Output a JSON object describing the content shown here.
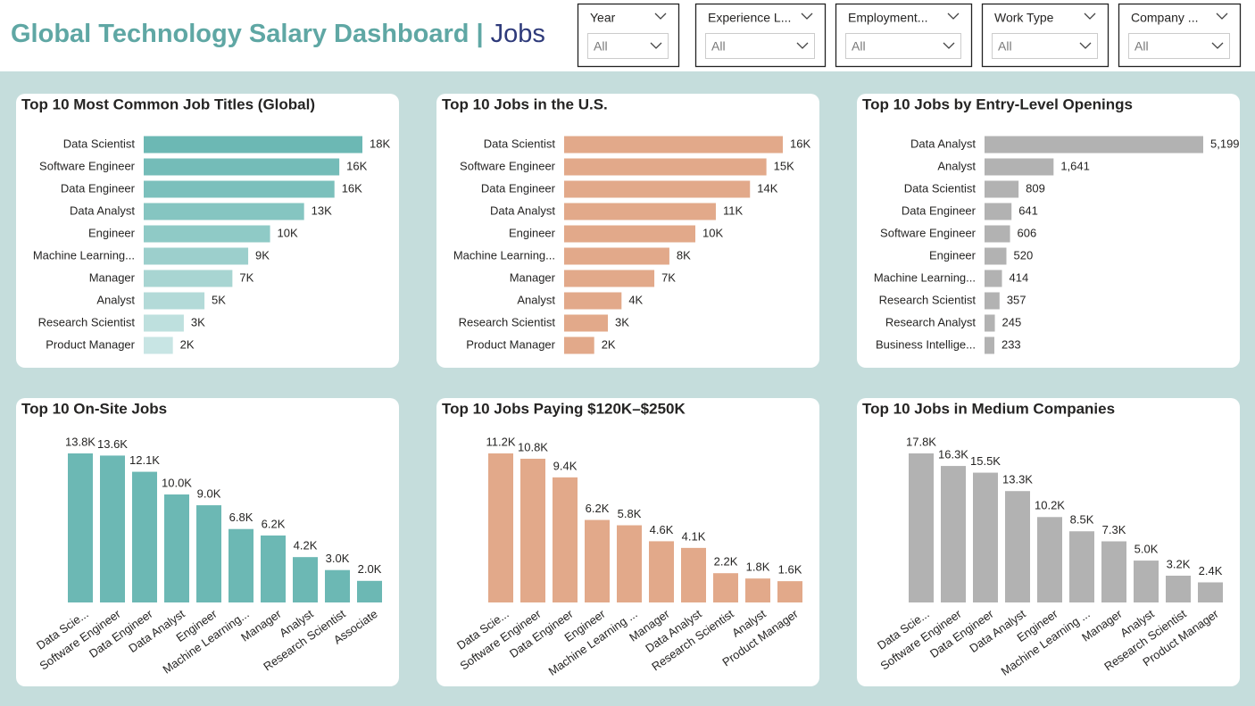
{
  "header": {
    "title": "Global Technology Salary Dashboard",
    "separator": "|",
    "page": "Jobs"
  },
  "filters": [
    {
      "label": "Year",
      "value": "All"
    },
    {
      "label": "Experience L...",
      "value": "All"
    },
    {
      "label": "Employment...",
      "value": "All"
    },
    {
      "label": "Work Type",
      "value": "All"
    },
    {
      "label": "Company ...",
      "value": "All"
    }
  ],
  "chart_data": [
    {
      "type": "bar",
      "horizontal": true,
      "title": "Top 10 Most Common Job Titles (Global)",
      "categories": [
        "Data Scientist",
        "Software Engineer",
        "Data Engineer",
        "Data Analyst",
        "Engineer",
        "Machine Learning...",
        "Manager",
        "Analyst",
        "Research Scientist",
        "Product Manager"
      ],
      "values": [
        18000,
        16100,
        15700,
        13200,
        10400,
        8600,
        7300,
        5000,
        3300,
        2400
      ],
      "value_labels": [
        "18K",
        "16K",
        "16K",
        "13K",
        "10K",
        "9K",
        "7K",
        "5K",
        "3K",
        "2K"
      ],
      "colors": [
        "#6cb8b4",
        "#74bcb8",
        "#7bc0bc",
        "#85c5c1",
        "#8fcac6",
        "#9ccfcc",
        "#a8d5d2",
        "#b3dad8",
        "#bee0de",
        "#c8e5e4"
      ]
    },
    {
      "type": "bar",
      "horizontal": true,
      "title": "Top 10 Jobs in the U.S.",
      "categories": [
        "Data Scientist",
        "Software Engineer",
        "Data Engineer",
        "Data Analyst",
        "Engineer",
        "Machine Learning...",
        "Manager",
        "Analyst",
        "Research Scientist",
        "Product Manager"
      ],
      "values": [
        16000,
        14800,
        13600,
        11100,
        9600,
        7700,
        6600,
        4200,
        3200,
        2200
      ],
      "value_labels": [
        "16K",
        "15K",
        "14K",
        "11K",
        "10K",
        "8K",
        "7K",
        "4K",
        "3K",
        "2K"
      ],
      "color": "#e2a98a"
    },
    {
      "type": "bar",
      "horizontal": true,
      "title": "Top 10 Jobs by Entry-Level Openings",
      "categories": [
        "Data Analyst",
        "Analyst",
        "Data Scientist",
        "Data Engineer",
        "Software Engineer",
        "Engineer",
        "Machine Learning...",
        "Research Scientist",
        "Research Analyst",
        "Business Intellige..."
      ],
      "values": [
        5199,
        1641,
        809,
        641,
        606,
        520,
        414,
        357,
        245,
        233
      ],
      "value_labels": [
        "5,199",
        "1,641",
        "809",
        "641",
        "606",
        "520",
        "414",
        "357",
        "245",
        "233"
      ],
      "color": "#b2b2b2"
    },
    {
      "type": "column",
      "title": "Top 10 On-Site Jobs",
      "categories": [
        "Data Scie...",
        "Software Engineer",
        "Data Engineer",
        "Data Analyst",
        "Engineer",
        "Machine Learning...",
        "Manager",
        "Analyst",
        "Research Scientist",
        "Associate"
      ],
      "values": [
        13800,
        13600,
        12100,
        10000,
        9000,
        6800,
        6200,
        4200,
        3000,
        2000
      ],
      "value_labels": [
        "13.8K",
        "13.6K",
        "12.1K",
        "10.0K",
        "9.0K",
        "6.8K",
        "6.2K",
        "4.2K",
        "3.0K",
        "2.0K"
      ],
      "color": "#6cb8b4"
    },
    {
      "type": "column",
      "title": "Top 10 Jobs Paying $120K–$250K",
      "categories": [
        "Data Scie...",
        "Software Engineer",
        "Data Engineer",
        "Engineer",
        "Machine Learning ...",
        "Manager",
        "Data Analyst",
        "Research Scientist",
        "Analyst",
        "Product Manager"
      ],
      "values": [
        11200,
        10800,
        9400,
        6200,
        5800,
        4600,
        4100,
        2200,
        1800,
        1600
      ],
      "value_labels": [
        "11.2K",
        "10.8K",
        "9.4K",
        "6.2K",
        "5.8K",
        "4.6K",
        "4.1K",
        "2.2K",
        "1.8K",
        "1.6K"
      ],
      "color": "#e2a98a"
    },
    {
      "type": "column",
      "title": "Top 10 Jobs in Medium Companies",
      "categories": [
        "Data Scie...",
        "Software Engineer",
        "Data Engineer",
        "Data Analyst",
        "Engineer",
        "Machine Learning ...",
        "Manager",
        "Analyst",
        "Research Scientist",
        "Product Manager"
      ],
      "values": [
        17800,
        16300,
        15500,
        13300,
        10200,
        8500,
        7300,
        5000,
        3200,
        2400
      ],
      "value_labels": [
        "17.8K",
        "16.3K",
        "15.5K",
        "13.3K",
        "10.2K",
        "8.5K",
        "7.3K",
        "5.0K",
        "3.2K",
        "2.4K"
      ],
      "color": "#b2b2b2"
    }
  ]
}
